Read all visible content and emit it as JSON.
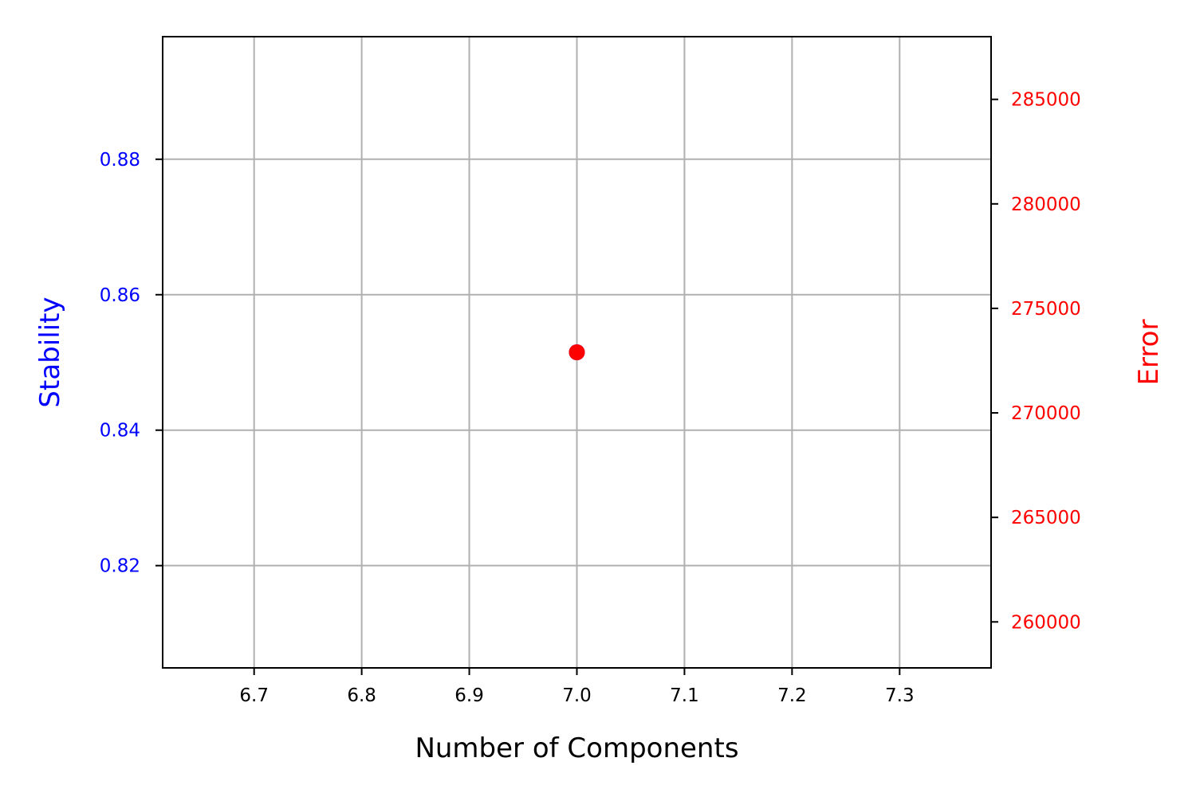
{
  "chart_data": {
    "type": "scatter",
    "title": "",
    "xlabel": "Number of Components",
    "ylabel_left": "Stability",
    "ylabel_right": "Error",
    "xlim": [
      6.615,
      7.385
    ],
    "ylim_left": [
      0.8049,
      0.8981
    ],
    "ylim_right": [
      257800,
      288000
    ],
    "x_ticks": [
      6.7,
      6.8,
      6.9,
      7.0,
      7.1,
      7.2,
      7.3
    ],
    "x_tick_labels": [
      "6.7",
      "6.8",
      "6.9",
      "7.0",
      "7.1",
      "7.2",
      "7.3"
    ],
    "y_left_ticks": [
      0.82,
      0.84,
      0.86,
      0.88
    ],
    "y_left_tick_labels": [
      "0.82",
      "0.84",
      "0.86",
      "0.88"
    ],
    "y_right_ticks": [
      260000,
      265000,
      270000,
      275000,
      280000,
      285000
    ],
    "y_right_tick_labels": [
      "260000",
      "265000",
      "270000",
      "275000",
      "280000",
      "285000"
    ],
    "grid": true,
    "series": [
      {
        "axis": "left",
        "color": "#0000ff",
        "points": [
          {
            "x": 7.0,
            "y": 0.8515
          }
        ]
      },
      {
        "axis": "right",
        "color": "#ff0000",
        "points": [
          {
            "x": 7.0,
            "y": 272900
          }
        ]
      }
    ],
    "colors": {
      "left_axis": "#0000ff",
      "right_axis": "#ff0000",
      "grid": "#b0b0b0",
      "frame": "#000000"
    }
  }
}
